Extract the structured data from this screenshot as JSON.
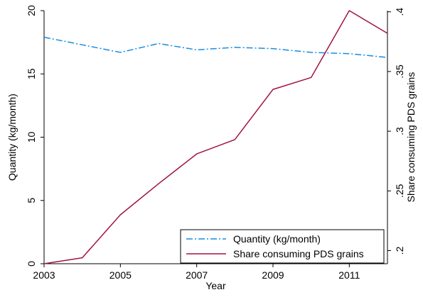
{
  "chart_data": {
    "type": "line",
    "x": [
      2003,
      2004,
      2005,
      2006,
      2007,
      2008,
      2009,
      2010,
      2011,
      2012
    ],
    "xlabel": "Year",
    "xlim": [
      2003,
      2012
    ],
    "xticks": [
      2003,
      2005,
      2007,
      2009,
      2011
    ],
    "xticklabels": [
      "2003",
      "2005",
      "2007",
      "2009",
      "2011"
    ],
    "ylabel_left": "Quantity (kg/month)",
    "ylim_left": [
      0,
      20
    ],
    "yticks_left": [
      0,
      5,
      10,
      15,
      20
    ],
    "yticklabels_left": [
      "0",
      "5",
      "10",
      "15",
      "20"
    ],
    "ylabel_right": "Share consuming PDS grains",
    "ylim_right": [
      0.189,
      0.401
    ],
    "yticks_right": [
      0.2,
      0.25,
      0.3,
      0.35,
      0.4
    ],
    "yticklabels_right": [
      ".2",
      ".25",
      ".3",
      ".35",
      ".4"
    ],
    "grid": false,
    "legend_position": "bottom-right",
    "series": [
      {
        "name": "Quantity (kg/month)",
        "axis": "left",
        "color": "#1a8ce0",
        "style": "dash-dot",
        "values": [
          17.9,
          17.3,
          16.7,
          17.4,
          16.9,
          17.1,
          17.0,
          16.7,
          16.6,
          16.3
        ]
      },
      {
        "name": "Share consuming PDS grains",
        "axis": "right",
        "color": "#a0153e",
        "style": "solid",
        "values": [
          0.189,
          0.194,
          0.23,
          0.256,
          0.281,
          0.293,
          0.335,
          0.345,
          0.401,
          0.382
        ]
      }
    ]
  }
}
